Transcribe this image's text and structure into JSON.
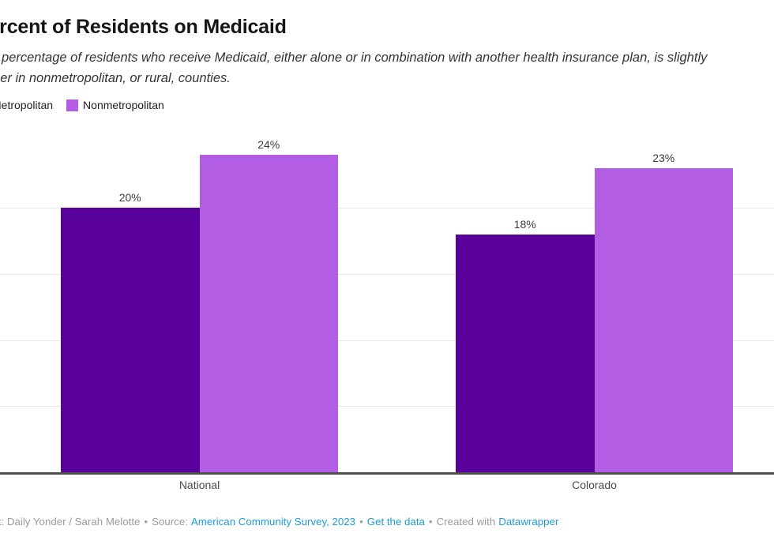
{
  "header": {
    "title": "Percent of Residents on Medicaid",
    "subtitle_lines": [
      "The percentage of residents who receive Medicaid, either alone or in combination with another health insurance plan, is slightly",
      "higher in nonmetropolitan, or rural, counties."
    ]
  },
  "legend": {
    "items": [
      {
        "label": "Metropolitan",
        "color": "#5a019b"
      },
      {
        "label": "Nonmetropolitan",
        "color": "#b35de4"
      }
    ]
  },
  "chart_data": {
    "type": "bar",
    "categories": [
      "National",
      "Colorado"
    ],
    "series": [
      {
        "name": "Metropolitan",
        "color": "#5a019b",
        "values": [
          20,
          18
        ]
      },
      {
        "name": "Nonmetropolitan",
        "color": "#b35de4",
        "values": [
          24,
          23
        ]
      }
    ],
    "value_labels": [
      [
        "20%",
        "18%"
      ],
      [
        "24%",
        "23%"
      ]
    ],
    "value_suffix": "%",
    "title": "Percent of Residents on Medicaid",
    "xlabel": "",
    "ylabel": "",
    "ylim": [
      0,
      26
    ],
    "grid_values": [
      5,
      10,
      15,
      20
    ],
    "grid": true,
    "legend_position": "top-left",
    "colors": {
      "grid": "#e8e8e8",
      "axis_line": "#4f4f4f"
    }
  },
  "footer": {
    "credit": "Chart: Daily Yonder / Sarah Melotte",
    "separator": "•",
    "source_label": "Source:",
    "source_link_label": "American Community Survey, 2023",
    "get_data_label": "Get the data",
    "created_with_label": "Created with",
    "tool_link_label": "Datawrapper",
    "link_color": "#1e9bd6"
  }
}
